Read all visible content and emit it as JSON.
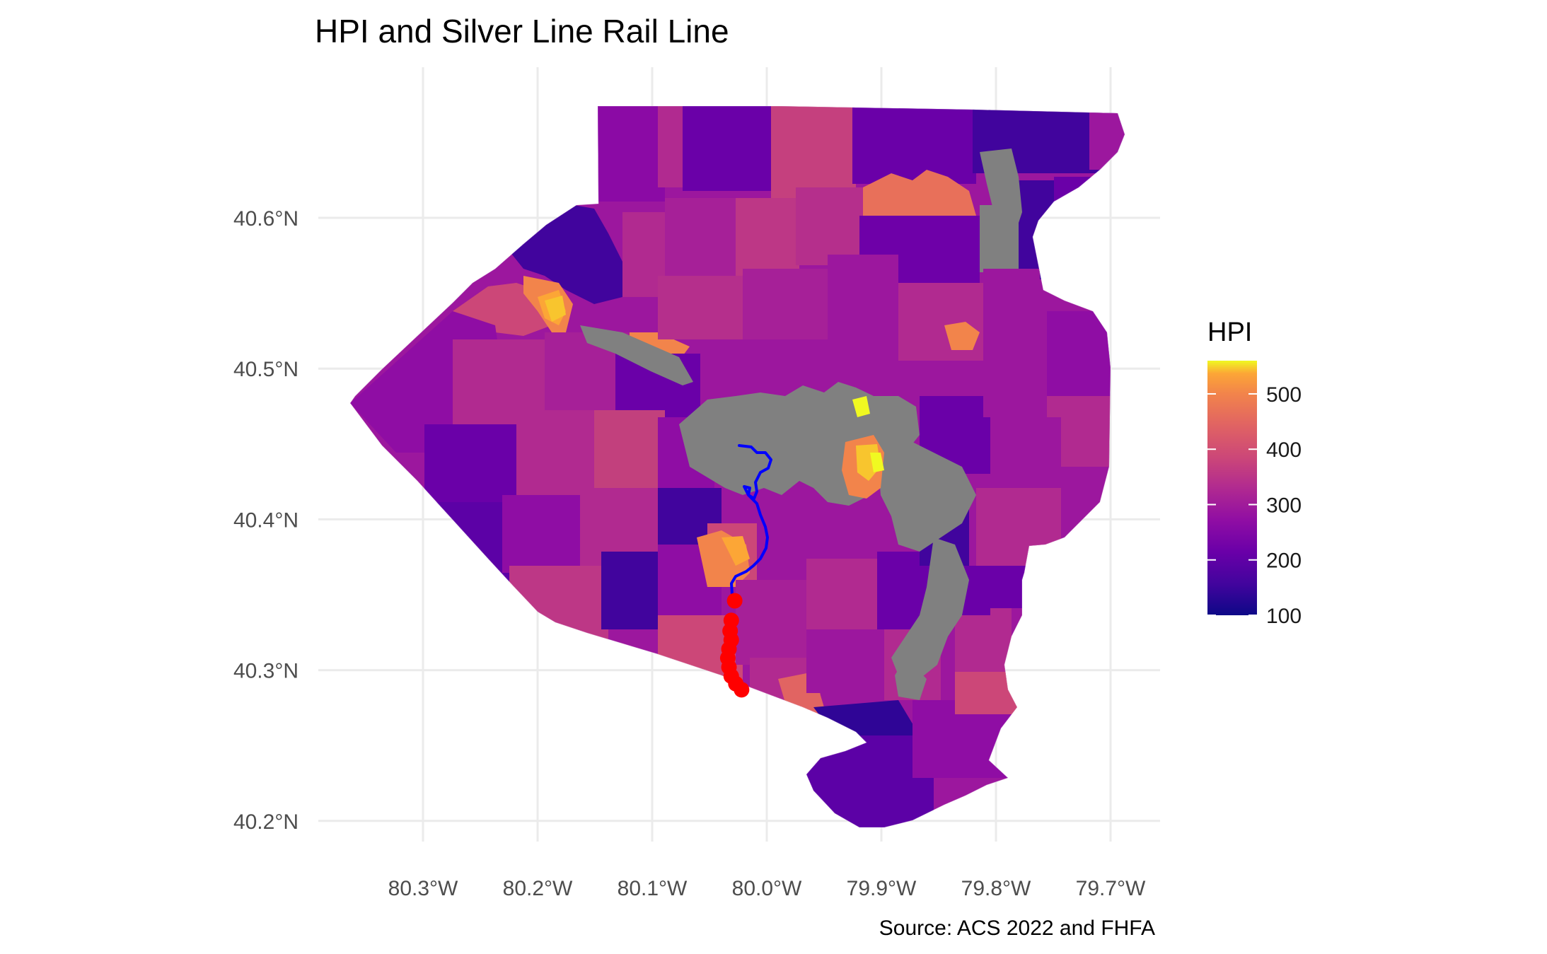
{
  "title": "HPI and Silver Line Rail Line",
  "caption": "Source: ACS 2022 and FHFA",
  "axes": {
    "x_ticks": [
      {
        "label": "80.3°W",
        "lon": -80.3
      },
      {
        "label": "80.2°W",
        "lon": -80.2
      },
      {
        "label": "80.1°W",
        "lon": -80.1
      },
      {
        "label": "80.0°W",
        "lon": -80.0
      },
      {
        "label": "79.9°W",
        "lon": -79.9
      },
      {
        "label": "79.8°W",
        "lon": -79.8
      },
      {
        "label": "79.7°W",
        "lon": -79.7
      }
    ],
    "y_ticks": [
      {
        "label": "40.6°N",
        "lat": 40.6
      },
      {
        "label": "40.5°N",
        "lat": 40.5
      },
      {
        "label": "40.4°N",
        "lat": 40.4
      },
      {
        "label": "40.3°N",
        "lat": 40.3
      },
      {
        "label": "40.2°N",
        "lat": 40.2
      }
    ],
    "grid": true
  },
  "legend": {
    "title": "HPI",
    "position": "right",
    "range": [
      100,
      560
    ],
    "ticks": [
      "500",
      "400",
      "300",
      "200",
      "100"
    ],
    "tick_values": [
      500,
      400,
      300,
      200,
      100
    ],
    "colormap": "plasma",
    "no_data_color": "#808080"
  },
  "layers": {
    "rail_line_color": "#0000ff",
    "station_color": "#ff0000"
  },
  "colors": {
    "grid": "#ebebeb",
    "background": "#ffffff"
  }
}
